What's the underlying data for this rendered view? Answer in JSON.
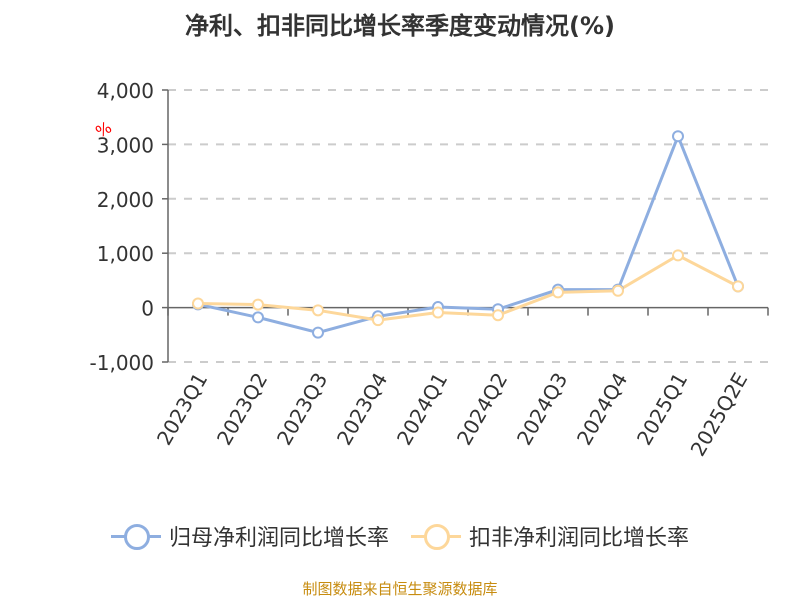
{
  "title": "净利、扣非同比增长率季度变动情况(%)",
  "unit_label": "%",
  "footer": "制图数据来自恒生聚源数据库",
  "colors": {
    "series1": "#8eaee0",
    "series2": "#fdd79a",
    "axis_text": "#333333",
    "grid": "#cccccc",
    "footer": "#c78c10",
    "unit": "#ff0000"
  },
  "legend": [
    {
      "label": "归母净利润同比增长率",
      "color": "#8eaee0"
    },
    {
      "label": "扣非净利润同比增长率",
      "color": "#fdd79a"
    }
  ],
  "chart_data": {
    "type": "line",
    "title": "净利、扣非同比增长率季度变动情况(%)",
    "xlabel": "",
    "ylabel": "%",
    "categories": [
      "2023Q1",
      "2023Q2",
      "2023Q3",
      "2023Q4",
      "2024Q1",
      "2024Q2",
      "2024Q3",
      "2024Q4",
      "2025Q1",
      "2025Q2E"
    ],
    "yticks": [
      "4,000",
      "3,000",
      "2,000",
      "1,000",
      "0",
      "-1,000"
    ],
    "ylim": [
      -1000,
      4000
    ],
    "grid": true,
    "legend_position": "bottom",
    "series": [
      {
        "name": "归母净利润同比增长率",
        "values": [
          60,
          -180,
          -460,
          -160,
          10,
          -30,
          330,
          330,
          3150,
          390
        ]
      },
      {
        "name": "扣非净利润同比增长率",
        "values": [
          75,
          55,
          -50,
          -230,
          -90,
          -140,
          280,
          310,
          960,
          390
        ]
      }
    ]
  }
}
